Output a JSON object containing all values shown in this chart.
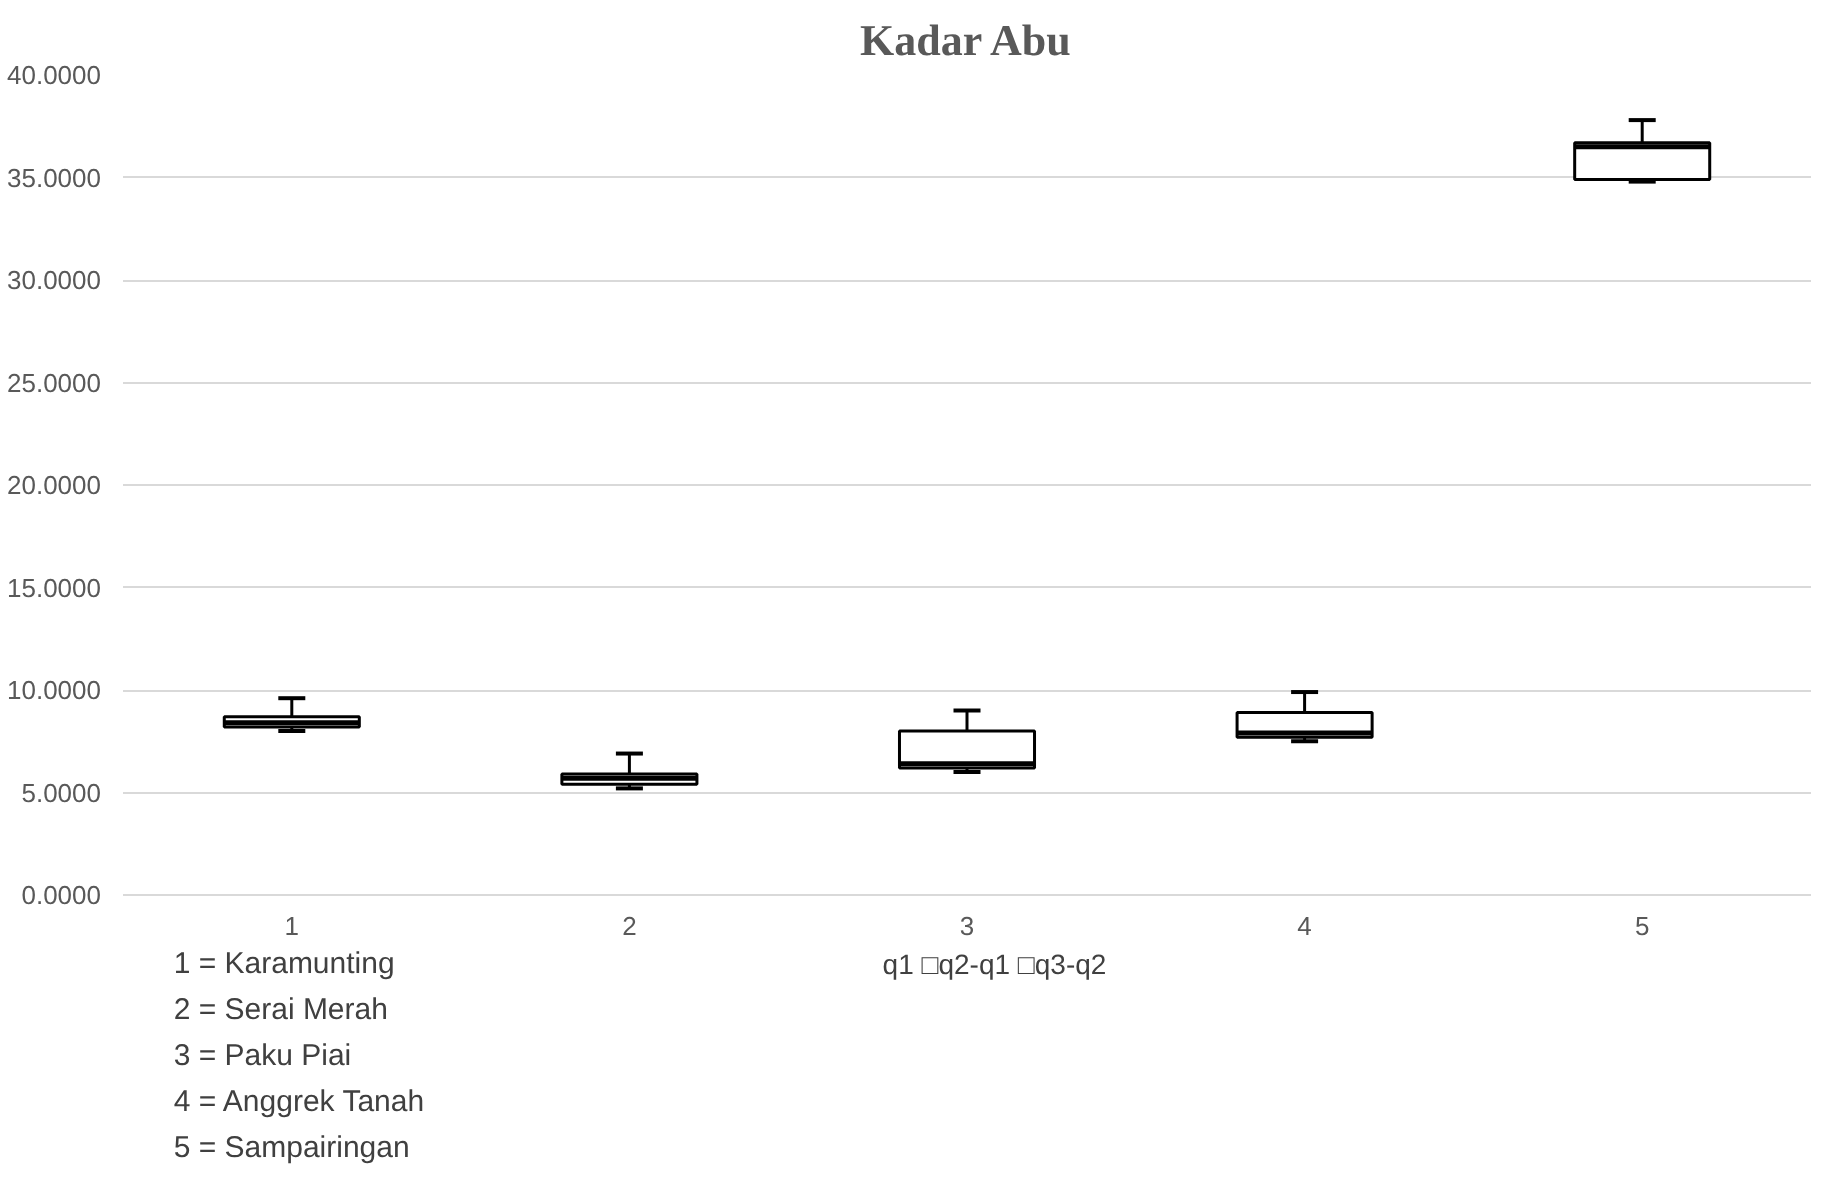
{
  "chart_data": {
    "type": "box",
    "title": "Kadar Abu",
    "categories": [
      "1",
      "2",
      "3",
      "4",
      "5"
    ],
    "boxes": [
      {
        "low": 8.0,
        "q1": 8.2,
        "median": 8.4,
        "q3": 8.7,
        "high": 9.6
      },
      {
        "low": 5.2,
        "q1": 5.4,
        "median": 5.7,
        "q3": 5.9,
        "high": 6.9
      },
      {
        "low": 6.0,
        "q1": 6.2,
        "median": 6.4,
        "q3": 8.0,
        "high": 9.0
      },
      {
        "low": 7.5,
        "q1": 7.7,
        "median": 7.9,
        "q3": 8.9,
        "high": 9.9
      },
      {
        "low": 34.8,
        "q1": 34.9,
        "median": 36.5,
        "q3": 36.7,
        "high": 37.8
      }
    ],
    "ylim": [
      0,
      40
    ],
    "yticks": [
      {
        "value": 0,
        "label": "0.0000"
      },
      {
        "value": 5,
        "label": "5.0000"
      },
      {
        "value": 10,
        "label": "10.0000"
      },
      {
        "value": 15,
        "label": "15.0000"
      },
      {
        "value": 20,
        "label": "20.0000"
      },
      {
        "value": 25,
        "label": "25.0000"
      },
      {
        "value": 30,
        "label": "30.0000"
      },
      {
        "value": 35,
        "label": "35.0000"
      },
      {
        "value": 40,
        "label": "40.0000"
      }
    ],
    "grid": "y",
    "annotations": [
      "1 = Karamunting",
      "2 = Serai Merah",
      "3 = Paku Piai",
      "4 = Anggrek Tanah",
      "5 = Sampairingan",
      "q1  □q2-q1  □q3-q2"
    ]
  }
}
